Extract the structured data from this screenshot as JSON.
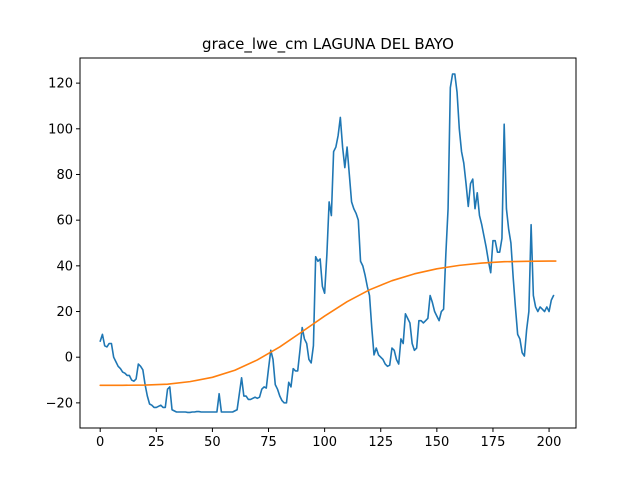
{
  "chart_data": {
    "type": "line",
    "title": "grace_lwe_cm LAGUNA DEL BAYO",
    "xlabel": "",
    "ylabel": "",
    "xlim": [
      -9,
      212
    ],
    "ylim": [
      -31,
      131
    ],
    "x_ticks": [
      0,
      25,
      50,
      75,
      100,
      125,
      150,
      175,
      200
    ],
    "y_ticks": [
      -20,
      0,
      20,
      40,
      60,
      80,
      100,
      120
    ],
    "grid": false,
    "series": [
      {
        "color": "#1f77b4",
        "points": [
          [
            0,
            7
          ],
          [
            1,
            10
          ],
          [
            2,
            5
          ],
          [
            3,
            4.5
          ],
          [
            4,
            6
          ],
          [
            5,
            6
          ],
          [
            6,
            0
          ],
          [
            7,
            -2
          ],
          [
            8,
            -4
          ],
          [
            9,
            -5
          ],
          [
            10,
            -6.5
          ],
          [
            11,
            -7
          ],
          [
            12,
            -8
          ],
          [
            13,
            -8
          ],
          [
            14,
            -10
          ],
          [
            15,
            -10.5
          ],
          [
            16,
            -9.5
          ],
          [
            17,
            -3
          ],
          [
            18,
            -4
          ],
          [
            19,
            -5.5
          ],
          [
            20,
            -12
          ],
          [
            21,
            -17
          ],
          [
            22,
            -20.5
          ],
          [
            23,
            -21
          ],
          [
            24,
            -22
          ],
          [
            25,
            -22
          ],
          [
            26,
            -21.5
          ],
          [
            27,
            -21
          ],
          [
            28,
            -22
          ],
          [
            29,
            -22
          ],
          [
            30,
            -14
          ],
          [
            31,
            -13
          ],
          [
            32,
            -23
          ],
          [
            33,
            -23.5
          ],
          [
            34,
            -24
          ],
          [
            35,
            -24
          ],
          [
            36,
            -24
          ],
          [
            37,
            -24
          ],
          [
            38,
            -24
          ],
          [
            39,
            -24.2
          ],
          [
            40,
            -24.2
          ],
          [
            41,
            -24
          ],
          [
            42,
            -24
          ],
          [
            43,
            -23.8
          ],
          [
            44,
            -23.8
          ],
          [
            45,
            -24
          ],
          [
            46,
            -24
          ],
          [
            47,
            -24
          ],
          [
            48,
            -24
          ],
          [
            49,
            -24
          ],
          [
            50,
            -24
          ],
          [
            51,
            -24
          ],
          [
            52,
            -24
          ],
          [
            53,
            -16
          ],
          [
            54,
            -24
          ],
          [
            55,
            -24
          ],
          [
            56,
            -24
          ],
          [
            57,
            -24
          ],
          [
            58,
            -24
          ],
          [
            59,
            -24
          ],
          [
            60,
            -23.5
          ],
          [
            61,
            -23
          ],
          [
            62,
            -16
          ],
          [
            63,
            -9
          ],
          [
            64,
            -17
          ],
          [
            65,
            -17
          ],
          [
            66,
            -18.5
          ],
          [
            67,
            -18.5
          ],
          [
            68,
            -18
          ],
          [
            69,
            -17.5
          ],
          [
            70,
            -18
          ],
          [
            71,
            -17.5
          ],
          [
            72,
            -14
          ],
          [
            73,
            -13
          ],
          [
            74,
            -13.5
          ],
          [
            75,
            -5
          ],
          [
            76,
            3
          ],
          [
            77,
            -1
          ],
          [
            78,
            -12
          ],
          [
            79,
            -14
          ],
          [
            80,
            -17
          ],
          [
            81,
            -19
          ],
          [
            82,
            -20
          ],
          [
            83,
            -20
          ],
          [
            84,
            -11
          ],
          [
            85,
            -13
          ],
          [
            86,
            -5
          ],
          [
            87,
            -6
          ],
          [
            88,
            -6
          ],
          [
            89,
            3
          ],
          [
            90,
            13
          ],
          [
            91,
            8
          ],
          [
            92,
            6
          ],
          [
            93,
            -1
          ],
          [
            94,
            -2.5
          ],
          [
            95,
            5
          ],
          [
            96,
            44
          ],
          [
            97,
            42
          ],
          [
            98,
            43
          ],
          [
            99,
            31
          ],
          [
            100,
            28
          ],
          [
            101,
            45
          ],
          [
            102,
            68
          ],
          [
            103,
            62
          ],
          [
            104,
            90
          ],
          [
            105,
            92
          ],
          [
            106,
            97
          ],
          [
            107,
            105
          ],
          [
            108,
            92
          ],
          [
            109,
            83
          ],
          [
            110,
            92
          ],
          [
            111,
            80
          ],
          [
            112,
            68
          ],
          [
            113,
            65
          ],
          [
            114,
            63
          ],
          [
            115,
            60
          ],
          [
            116,
            42
          ],
          [
            117,
            40
          ],
          [
            118,
            36
          ],
          [
            119,
            31
          ],
          [
            120,
            27
          ],
          [
            121,
            13
          ],
          [
            122,
            1
          ],
          [
            123,
            4
          ],
          [
            124,
            1
          ],
          [
            125,
            0
          ],
          [
            126,
            -1
          ],
          [
            127,
            -3
          ],
          [
            128,
            -4
          ],
          [
            129,
            -3.5
          ],
          [
            130,
            4
          ],
          [
            131,
            3
          ],
          [
            132,
            -1
          ],
          [
            133,
            -3
          ],
          [
            134,
            8
          ],
          [
            135,
            6
          ],
          [
            136,
            19
          ],
          [
            137,
            17
          ],
          [
            138,
            15
          ],
          [
            139,
            6
          ],
          [
            140,
            3
          ],
          [
            141,
            4
          ],
          [
            142,
            16
          ],
          [
            143,
            16
          ],
          [
            144,
            15
          ],
          [
            145,
            16
          ],
          [
            146,
            17
          ],
          [
            147,
            27
          ],
          [
            148,
            24
          ],
          [
            149,
            20
          ],
          [
            150,
            18
          ],
          [
            151,
            16
          ],
          [
            152,
            20
          ],
          [
            153,
            21
          ],
          [
            154,
            45
          ],
          [
            155,
            65
          ],
          [
            156,
            118
          ],
          [
            157,
            124
          ],
          [
            158,
            124
          ],
          [
            159,
            116
          ],
          [
            160,
            100
          ],
          [
            161,
            90
          ],
          [
            162,
            85
          ],
          [
            163,
            76
          ],
          [
            164,
            66
          ],
          [
            165,
            76
          ],
          [
            166,
            78
          ],
          [
            167,
            65
          ],
          [
            168,
            72
          ],
          [
            169,
            62
          ],
          [
            170,
            58
          ],
          [
            171,
            53
          ],
          [
            172,
            48
          ],
          [
            173,
            42
          ],
          [
            174,
            37
          ],
          [
            175,
            51
          ],
          [
            176,
            51
          ],
          [
            177,
            46
          ],
          [
            178,
            46
          ],
          [
            179,
            52
          ],
          [
            180,
            102
          ],
          [
            181,
            65
          ],
          [
            182,
            56
          ],
          [
            183,
            50
          ],
          [
            184,
            35
          ],
          [
            185,
            22
          ],
          [
            186,
            10
          ],
          [
            187,
            8
          ],
          [
            188,
            2
          ],
          [
            189,
            0.5
          ],
          [
            190,
            12
          ],
          [
            191,
            20
          ],
          [
            192,
            58
          ],
          [
            193,
            27
          ],
          [
            194,
            22
          ],
          [
            195,
            20
          ],
          [
            196,
            22
          ],
          [
            197,
            21
          ],
          [
            198,
            20
          ],
          [
            199,
            22
          ],
          [
            200,
            20
          ],
          [
            201,
            25
          ],
          [
            202,
            27
          ]
        ]
      },
      {
        "color": "#ff7f0e",
        "points": [
          [
            0,
            -12.3
          ],
          [
            10,
            -12.3
          ],
          [
            20,
            -12.2
          ],
          [
            30,
            -11.8
          ],
          [
            40,
            -10.7
          ],
          [
            50,
            -8.8
          ],
          [
            60,
            -5.7
          ],
          [
            70,
            -1.2
          ],
          [
            80,
            4.5
          ],
          [
            90,
            11.2
          ],
          [
            100,
            18
          ],
          [
            110,
            24.3
          ],
          [
            120,
            29.5
          ],
          [
            130,
            33.5
          ],
          [
            140,
            36.5
          ],
          [
            150,
            38.7
          ],
          [
            160,
            40.2
          ],
          [
            170,
            41.2
          ],
          [
            180,
            41.8
          ],
          [
            190,
            42
          ],
          [
            200,
            42.1
          ],
          [
            203,
            42.1
          ]
        ]
      }
    ]
  }
}
